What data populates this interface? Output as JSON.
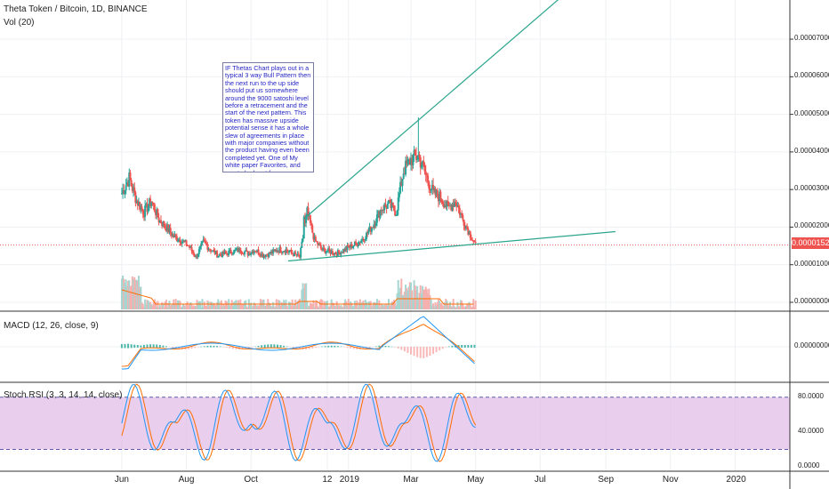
{
  "header": {
    "symbol_title": "Theta Token / Bitcoin, 1D, BINANCE",
    "volume_label": "Vol (20)"
  },
  "annotation": {
    "text": "IF Thetas Chart plays out in a typical 3 way Bull Pattern then the next run to the up side should put us somewhere around the 9000 satoshi level before a retracement and the start of the next pattern. This token has massive upside potential sense it has a whole slew of agreements in place with major companies without the product having even been completed yet. One of My white paper Favorites, and one to look out for as a possible giant in the future."
  },
  "last_price_label": "0.00001524",
  "colors": {
    "up": "#26a69a",
    "down": "#ef5350",
    "trendline": "#2ca58d",
    "macd_line": "#2196f3",
    "signal_line": "#ff6d00",
    "rsi_k": "#2196f3",
    "rsi_d": "#ff6d00",
    "rsi_band": "#e1bee7",
    "price_line": "#ef5350"
  },
  "chart_data": [
    {
      "type": "candlestick",
      "title": "Theta Token / Bitcoin, 1D, BINANCE",
      "x_ticks": [
        "Jun",
        "Aug",
        "Oct",
        "12",
        "2019",
        "Mar",
        "May",
        "Jul",
        "Sep",
        "Nov",
        "2020"
      ],
      "y_ticks": [
        "0.00007000",
        "0.00006000",
        "0.00005000",
        "0.00004000",
        "0.00003000",
        "0.00002000",
        "0.00001000",
        "0.00000000"
      ],
      "ylim": [
        0,
        7.9e-05
      ],
      "last_price": 1.524e-05,
      "close_series": {
        "x": [
          "2018-06-01",
          "2018-06-08",
          "2018-06-15",
          "2018-06-22",
          "2018-06-29",
          "2018-07-06",
          "2018-07-13",
          "2018-07-20",
          "2018-07-27",
          "2018-08-03",
          "2018-08-10",
          "2018-08-17",
          "2018-08-24",
          "2018-08-31",
          "2018-09-07",
          "2018-09-14",
          "2018-09-21",
          "2018-09-28",
          "2018-10-05",
          "2018-10-12",
          "2018-10-19",
          "2018-10-26",
          "2018-11-02",
          "2018-11-09",
          "2018-11-16",
          "2018-11-23",
          "2018-11-30",
          "2018-12-07",
          "2018-12-14",
          "2018-12-21",
          "2018-12-28",
          "2019-01-04",
          "2019-01-11",
          "2019-01-18",
          "2019-01-25",
          "2019-02-01",
          "2019-02-08",
          "2019-02-15",
          "2019-02-22",
          "2019-03-01",
          "2019-03-08",
          "2019-03-15",
          "2019-03-22",
          "2019-03-29",
          "2019-04-05",
          "2019-04-12",
          "2019-04-19",
          "2019-04-26",
          "2019-05-01"
        ],
        "values": [
          2.9e-05,
          3.3e-05,
          2.7e-05,
          2.4e-05,
          2.7e-05,
          2.2e-05,
          2e-05,
          1.75e-05,
          1.65e-05,
          1.5e-05,
          1.2e-05,
          1.6e-05,
          1.4e-05,
          1.25e-05,
          1.3e-05,
          1.35e-05,
          1.4e-05,
          1.3e-05,
          1.4e-05,
          1.25e-05,
          1.3e-05,
          1.4e-05,
          1.4e-05,
          1.3e-05,
          1.2e-05,
          2.4e-05,
          1.65e-05,
          1.4e-05,
          1.35e-05,
          1.3e-05,
          1.4e-05,
          1.5e-05,
          1.6e-05,
          1.8e-05,
          2.1e-05,
          2.5e-05,
          2.6e-05,
          2.4e-05,
          3.5e-05,
          3.8e-05,
          3.9e-05,
          3.4e-05,
          2.9e-05,
          2.8e-05,
          2.5e-05,
          2.7e-05,
          2.2e-05,
          1.8e-05,
          1.52e-05
        ]
      },
      "trendlines": [
        {
          "from": [
            "2018-11-20",
            2.22e-05
          ],
          "to": [
            "2019-07-20",
            8.1e-05
          ]
        },
        {
          "from": [
            "2018-11-05",
            1.1e-05
          ],
          "to": [
            "2019-09-10",
            1.88e-05
          ]
        }
      ]
    },
    {
      "type": "bar",
      "title": "Vol (20)",
      "note": "volume bars at bottom of price pane"
    },
    {
      "type": "line",
      "title": "MACD (12, 26, close, 9)",
      "y_ticks": [
        "0.00000000"
      ]
    },
    {
      "type": "line",
      "title": "Stoch RSI (3, 3, 14, 14, close)",
      "y_ticks": [
        "80.0000",
        "40.0000",
        "0.0000"
      ],
      "ylim": [
        -5,
        95
      ],
      "band": [
        20,
        80
      ]
    }
  ]
}
